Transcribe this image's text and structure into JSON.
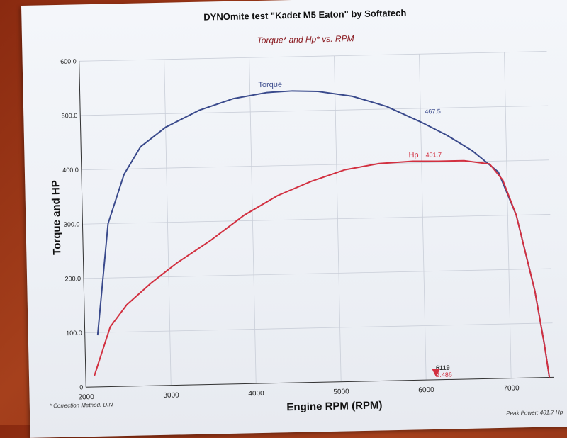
{
  "header": {
    "title": "DYNOmite test \"Kadet M5 Eaton\" by Softatech",
    "subtitle": "Torque* and Hp* vs. RPM"
  },
  "footer": {
    "correction": "* Correction Method: DIN",
    "peak_power": "Peak Power: 401.7 Hp"
  },
  "chart_data": {
    "type": "line",
    "title": "Torque* and Hp* vs. RPM",
    "xlabel": "Engine RPM (RPM)",
    "ylabel": "Torque and HP",
    "xlim": [
      2000,
      7500
    ],
    "ylim": [
      0,
      600
    ],
    "x_ticks": [
      "2000",
      "3000",
      "4000",
      "5000",
      "6000",
      "7000"
    ],
    "y_ticks": [
      "0",
      "100.0",
      "200.0",
      "300.0",
      "400.0",
      "500.0",
      "600.0"
    ],
    "grid": true,
    "series": [
      {
        "name": "Torque",
        "color": "#3a4a8c",
        "x": [
          2150,
          2300,
          2500,
          2700,
          3000,
          3400,
          3800,
          4200,
          4500,
          4800,
          5200,
          5600,
          6000,
          6300,
          6600,
          6900,
          7100,
          7300,
          7400,
          7450
        ],
        "y": [
          95,
          300,
          390,
          440,
          475,
          505,
          525,
          535,
          537,
          535,
          525,
          505,
          475,
          450,
          420,
          380,
          300,
          160,
          60,
          0
        ]
      },
      {
        "name": "Hp",
        "color": "#d23040",
        "x": [
          2100,
          2300,
          2500,
          2800,
          3100,
          3500,
          3900,
          4300,
          4700,
          5100,
          5500,
          5900,
          6200,
          6500,
          6800,
          6950,
          7100,
          7300,
          7400,
          7450
        ],
        "y": [
          20,
          110,
          150,
          190,
          225,
          265,
          310,
          345,
          370,
          390,
          400,
          403,
          402,
          402,
          395,
          365,
          300,
          160,
          60,
          0
        ]
      }
    ],
    "annotations": [
      {
        "text": "Torque",
        "x": 4100,
        "y": 545,
        "series": "Torque"
      },
      {
        "text": "467.5",
        "x": 6050,
        "y": 490,
        "series": "Torque"
      },
      {
        "text": "Hp",
        "x": 5850,
        "y": 410,
        "series": "Hp"
      },
      {
        "text": "401.7",
        "x": 6050,
        "y": 410,
        "series": "Hp"
      },
      {
        "text": "6119",
        "x": 6119,
        "y": 18,
        "series": "marker"
      },
      {
        "text": "2.486",
        "x": 6119,
        "y": 5,
        "series": "Hp"
      }
    ]
  }
}
